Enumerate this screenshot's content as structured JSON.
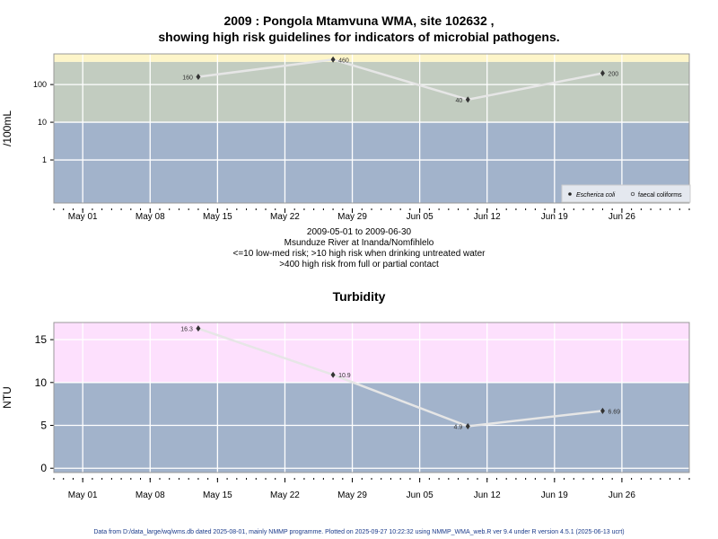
{
  "chart_data": [
    {
      "type": "line",
      "title_line1": "2009 : Pongola Mtamvuna WMA, site 102632 ,",
      "title_line2": "showing high risk guidelines for indicators of microbial pathogens.",
      "ylabel": "/100mL",
      "yscale": "log",
      "ylim": [
        0.072,
        650
      ],
      "yticks": [
        1,
        10,
        100
      ],
      "ytick_labels": [
        "1",
        "10",
        "100"
      ],
      "xlim": [
        "2009-04-28",
        "2009-07-03"
      ],
      "xticks": [
        "2009-05-01",
        "2009-05-08",
        "2009-05-15",
        "2009-05-22",
        "2009-05-29",
        "2009-06-05",
        "2009-06-12",
        "2009-06-19",
        "2009-06-26"
      ],
      "xtick_labels": [
        "May 01",
        "May 08",
        "May 15",
        "May 22",
        "May 29",
        "Jun 05",
        "Jun 12",
        "Jun 19",
        "Jun 26"
      ],
      "bands": [
        {
          "from": 0.01,
          "to": 10,
          "color": "#a2b3cb"
        },
        {
          "from": 10,
          "to": 400,
          "color": "#c2ccc0"
        },
        {
          "from": 400,
          "to": 10000,
          "color": "#fdf5c9"
        }
      ],
      "series": [
        {
          "name": "Escherica coli",
          "marker": "filled",
          "x": [
            "2009-05-13",
            "2009-05-27",
            "2009-06-10",
            "2009-06-24"
          ],
          "values": [
            160,
            460,
            40,
            200
          ],
          "labels": [
            "160",
            "460",
            "40",
            "200"
          ],
          "label_side": [
            "left",
            "right",
            "left",
            "right"
          ]
        }
      ],
      "legend": {
        "entries": [
          "Escherica coli",
          "faecal coliforms"
        ],
        "placement": "bottom-right"
      },
      "subtitle": [
        "2009-05-01 to 2009-06-30",
        "Msunduze River at Inanda/Nomfihlelo",
        "<=10 low-med risk; >10 high risk when drinking untreated water",
        ">400 high risk from full or partial contact"
      ]
    },
    {
      "type": "line",
      "title": "Turbidity",
      "ylabel": "NTU",
      "yscale": "linear",
      "ylim": [
        -0.5,
        17
      ],
      "yticks": [
        0,
        5,
        10,
        15
      ],
      "ytick_labels": [
        "0",
        "5",
        "10",
        "15"
      ],
      "xlim": [
        "2009-04-28",
        "2009-07-03"
      ],
      "xticks": [
        "2009-05-01",
        "2009-05-08",
        "2009-05-15",
        "2009-05-22",
        "2009-05-29",
        "2009-06-05",
        "2009-06-12",
        "2009-06-19",
        "2009-06-26"
      ],
      "xtick_labels": [
        "May 01",
        "May 08",
        "May 15",
        "May 22",
        "May 29",
        "Jun 05",
        "Jun 12",
        "Jun 19",
        "Jun 26"
      ],
      "bands": [
        {
          "from": -10,
          "to": 10,
          "color": "#a2b3cb"
        },
        {
          "from": 10,
          "to": 100,
          "color": "#fde0fd"
        }
      ],
      "series": [
        {
          "name": "Turbidity",
          "marker": "filled",
          "x": [
            "2009-05-13",
            "2009-05-27",
            "2009-06-10",
            "2009-06-24"
          ],
          "values": [
            16.3,
            10.9,
            4.9,
            6.69
          ],
          "labels": [
            "16.3",
            "10.9",
            "4.9",
            "6.69"
          ],
          "label_side": [
            "left",
            "right",
            "left",
            "right"
          ]
        }
      ]
    }
  ],
  "footer": "Data from D:/data_large/wq/wms.db dated 2025-08-01, mainly NMMP programme. Plotted on 2025-09-27 10:22:32 using NMMP_WMA_web.R ver 9.4 under R version 4.5.1 (2025-06-13 ucrt)"
}
